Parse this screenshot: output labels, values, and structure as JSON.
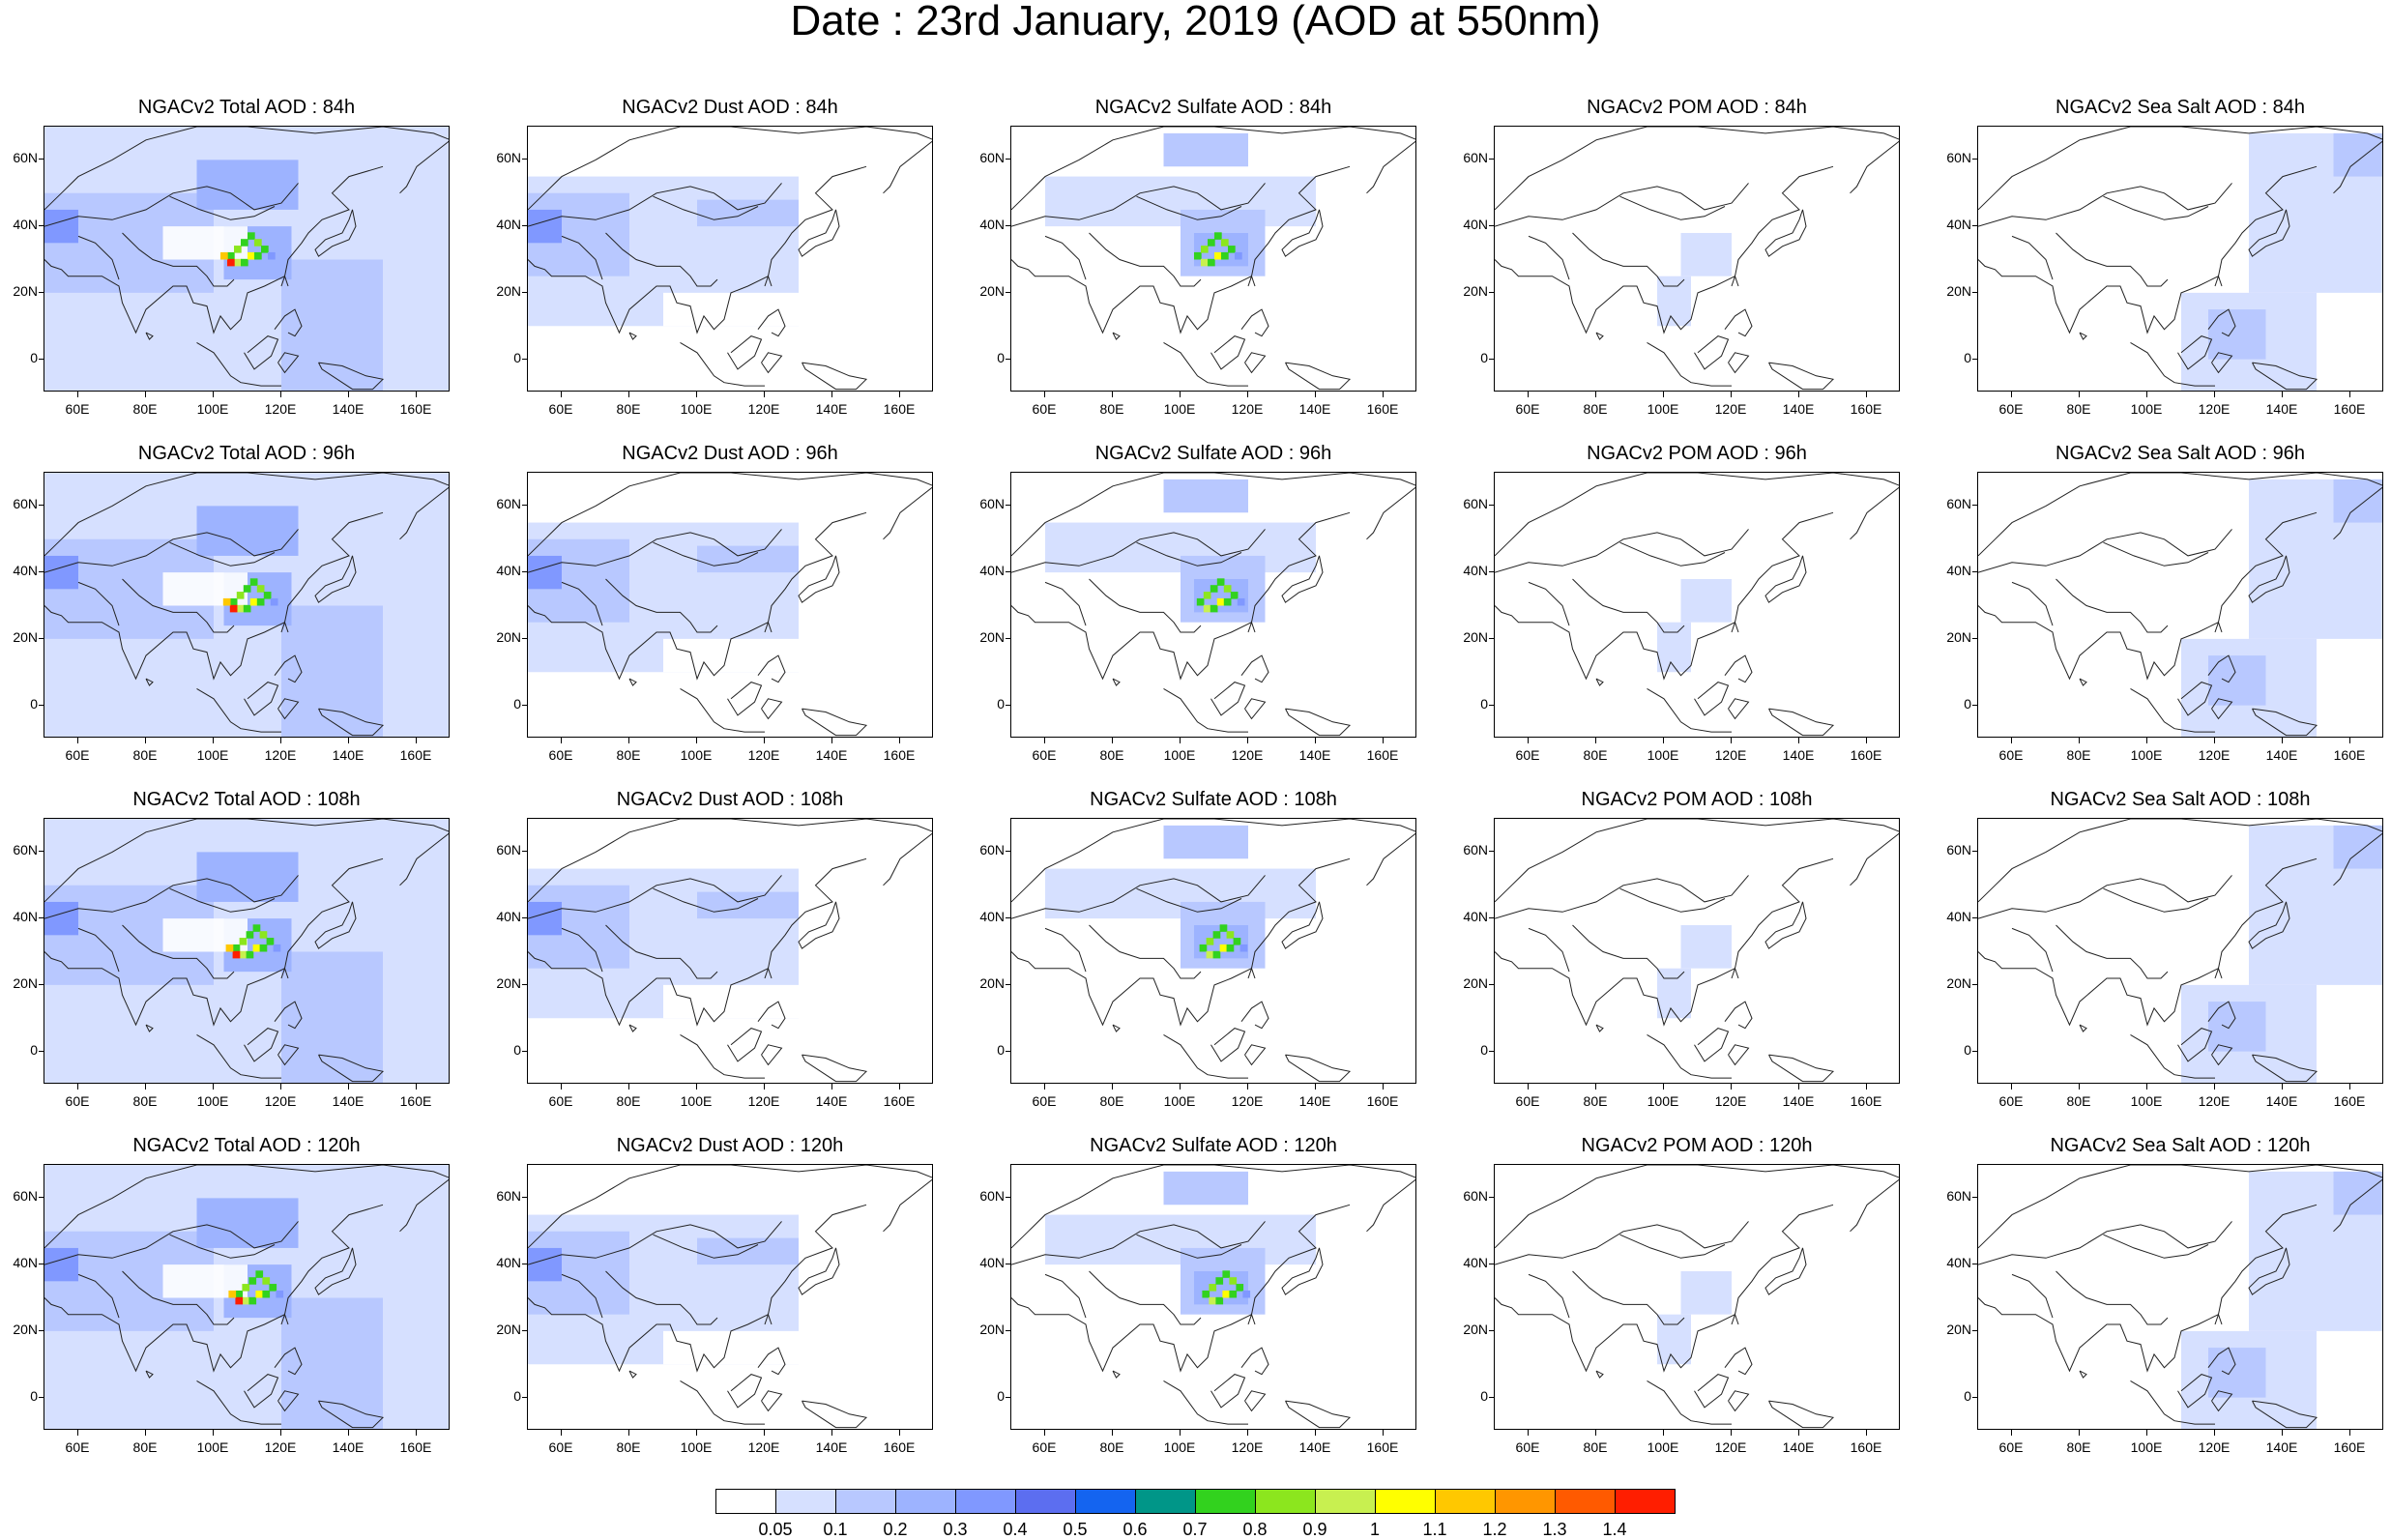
{
  "title": "Date : 23rd January, 2019 (AOD at 550nm)",
  "panels": [
    [
      "NGACv2 Total AOD : 84h",
      "NGACv2 Dust AOD : 84h",
      "NGACv2 Sulfate AOD : 84h",
      "NGACv2 POM AOD : 84h",
      "NGACv2 Sea Salt AOD : 84h"
    ],
    [
      "NGACv2 Total AOD : 96h",
      "NGACv2 Dust AOD : 96h",
      "NGACv2 Sulfate AOD : 96h",
      "NGACv2 POM AOD : 96h",
      "NGACv2 Sea Salt AOD : 96h"
    ],
    [
      "NGACv2 Total AOD : 108h",
      "NGACv2 Dust AOD : 108h",
      "NGACv2 Sulfate AOD : 108h",
      "NGACv2 POM AOD : 108h",
      "NGACv2 Sea Salt AOD : 108h"
    ],
    [
      "NGACv2 Total AOD : 120h",
      "NGACv2 Dust AOD : 120h",
      "NGACv2 Sulfate AOD : 120h",
      "NGACv2 POM AOD : 120h",
      "NGACv2 Sea Salt  AOD : 120h"
    ]
  ],
  "lat_ticks": [
    "60N",
    "40N",
    "20N",
    "0"
  ],
  "lon_ticks": [
    "60E",
    "80E",
    "100E",
    "120E",
    "140E",
    "160E"
  ],
  "colorbar": {
    "labels": [
      "0.05",
      "0.1",
      "0.2",
      "0.3",
      "0.4",
      "0.5",
      "0.6",
      "0.7",
      "0.8",
      "0.9",
      "1",
      "1.1",
      "1.2",
      "1.3",
      "1.4"
    ],
    "colors": [
      "#ffffff",
      "#d6e0ff",
      "#b8c8ff",
      "#9db3ff",
      "#8098ff",
      "#5c6ef0",
      "#1464f0",
      "#009688",
      "#32d21e",
      "#8ce61e",
      "#c8f050",
      "#ffff00",
      "#ffc800",
      "#ff9600",
      "#ff5a00",
      "#ff1e00"
    ]
  }
}
